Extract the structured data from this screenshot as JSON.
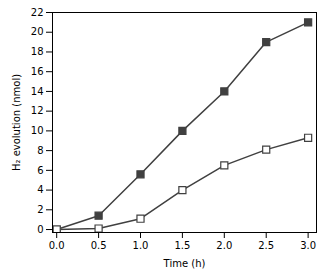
{
  "chart_data": {
    "type": "line",
    "x": [
      0.0,
      0.5,
      1.0,
      1.5,
      2.0,
      2.5,
      3.0
    ],
    "series": [
      {
        "color": "#404040",
        "marker": "filled-square",
        "values": [
          0.0,
          1.4,
          5.6,
          10.0,
          14.0,
          19.0,
          21.0
        ]
      },
      {
        "color": "#404040",
        "marker": "open-square",
        "values": [
          0.0,
          0.1,
          1.1,
          4.0,
          6.5,
          8.1,
          9.3
        ]
      }
    ],
    "xlabel": "Time (h)",
    "ylabel": "H₂ evolution (nmol)",
    "xlim": [
      -0.05,
      3.1
    ],
    "ylim": [
      -0.3,
      22
    ],
    "xticks": [
      {
        "value": 0.0,
        "label": "0.0"
      },
      0.5,
      {
        "value": 1.0,
        "label": "1.0"
      },
      1.5,
      {
        "value": 2.0,
        "label": "2.0"
      },
      2.5,
      {
        "value": 3.0,
        "label": "3.0"
      }
    ],
    "yticks": [
      0,
      2,
      4,
      6,
      8,
      10,
      12,
      14,
      16,
      18,
      20,
      22
    ],
    "grid": false
  }
}
